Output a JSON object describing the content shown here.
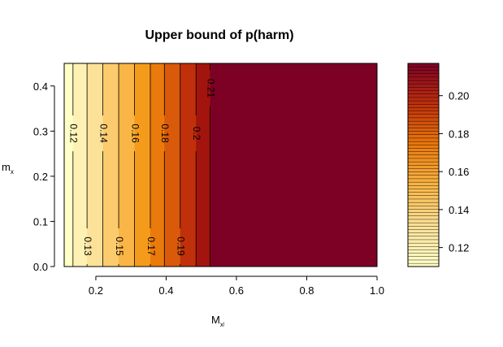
{
  "chart_data": {
    "type": "heatmap",
    "title": "Upper bound of p(harm)",
    "xlabel_main": "M",
    "xlabel_sub": "xʲ",
    "ylabel_main": "m",
    "ylabel_sub": "x",
    "xlim": [
      0.11,
      1.0
    ],
    "ylim": [
      0.0,
      0.45
    ],
    "x_ticks": [
      "0.2",
      "0.4",
      "0.6",
      "0.8",
      "1.0"
    ],
    "x_tick_values": [
      0.2,
      0.4,
      0.6,
      0.8,
      1.0
    ],
    "y_ticks": [
      "0.0",
      "0.1",
      "0.2",
      "0.3",
      "0.4"
    ],
    "y_tick_values": [
      0.0,
      0.1,
      0.2,
      0.3,
      0.4
    ],
    "bands": [
      {
        "x0": 0.11,
        "x1": 0.135,
        "color": "#FFFFC8"
      },
      {
        "x0": 0.135,
        "x1": 0.175,
        "color": "#FEF1B3"
      },
      {
        "x0": 0.175,
        "x1": 0.22,
        "color": "#FCE198"
      },
      {
        "x0": 0.22,
        "x1": 0.265,
        "color": "#FBCB6D"
      },
      {
        "x0": 0.265,
        "x1": 0.31,
        "color": "#F9B545"
      },
      {
        "x0": 0.31,
        "x1": 0.355,
        "color": "#F59B1B"
      },
      {
        "x0": 0.355,
        "x1": 0.395,
        "color": "#EA7A0C"
      },
      {
        "x0": 0.395,
        "x1": 0.44,
        "color": "#D95A0A"
      },
      {
        "x0": 0.44,
        "x1": 0.485,
        "color": "#C0300B"
      },
      {
        "x0": 0.485,
        "x1": 0.525,
        "color": "#A3140E"
      },
      {
        "x0": 0.525,
        "x1": 1.0,
        "color": "#7D0025"
      }
    ],
    "contours": [
      {
        "x": 0.135,
        "label": "0.12",
        "label_y": 0.295
      },
      {
        "x": 0.175,
        "label": "0.13",
        "label_y": 0.045
      },
      {
        "x": 0.22,
        "label": "0.14",
        "label_y": 0.295
      },
      {
        "x": 0.265,
        "label": "0.15",
        "label_y": 0.045
      },
      {
        "x": 0.31,
        "label": "0.16",
        "label_y": 0.295
      },
      {
        "x": 0.355,
        "label": "0.17",
        "label_y": 0.045
      },
      {
        "x": 0.395,
        "label": "0.18",
        "label_y": 0.295
      },
      {
        "x": 0.44,
        "label": "0.19",
        "label_y": 0.045
      },
      {
        "x": 0.485,
        "label": "0.2",
        "label_y": 0.295
      },
      {
        "x": 0.525,
        "label": "0.21",
        "label_y": 0.395
      }
    ],
    "colorbar": {
      "zlim": [
        0.11,
        0.217
      ],
      "ticks": [
        "0.12",
        "0.14",
        "0.16",
        "0.18",
        "0.20"
      ],
      "tick_values": [
        0.12,
        0.14,
        0.16,
        0.18,
        0.2
      ],
      "stops": [
        "#FFFFC8",
        "#FCE198",
        "#F9B545",
        "#EA7A0C",
        "#C0300B",
        "#7D0025"
      ],
      "levels": 60
    }
  }
}
